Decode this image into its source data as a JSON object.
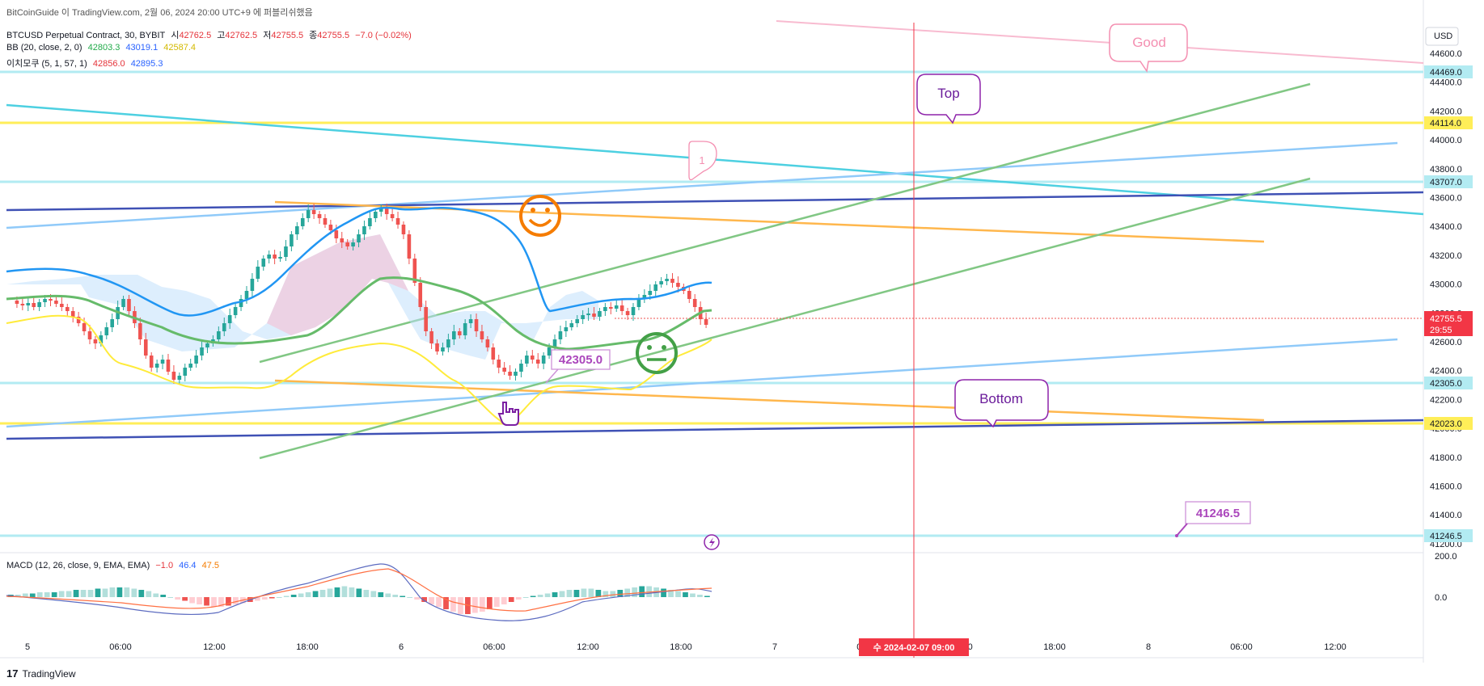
{
  "attribution": "BitCoinGuide 이 TradingView.com, 2월 06, 2024 20:00 UTC+9 에 퍼블리쉬했음",
  "symbol": {
    "name": "BTCUSD Perpetual Contract, 30, BYBIT",
    "open_label": "시",
    "open": "42762.5",
    "high_label": "고",
    "high": "42762.5",
    "low_label": "저",
    "low": "42755.5",
    "close_label": "종",
    "close": "42755.5",
    "change": "−7.0 (−0.02%)"
  },
  "bb": {
    "label": "BB (20, close, 2, 0)",
    "basis": "42803.3",
    "upper": "43019.1",
    "lower": "42587.4"
  },
  "ichimoku": {
    "label": "이치모쿠 (5, 1, 57, 1)",
    "v1": "42856.0",
    "v2": "42895.3"
  },
  "macd": {
    "label": "MACD (12, 26, close, 9, EMA, EMA)",
    "hist": "−1.0",
    "macd": "46.4",
    "signal": "47.5"
  },
  "currency": "USD",
  "price_axis": {
    "ticks": [
      "44600.0",
      "44400.0",
      "44200.0",
      "44000.0",
      "43800.0",
      "43600.0",
      "43400.0",
      "43200.0",
      "43000.0",
      "42800.0",
      "42600.0",
      "42400.0",
      "42200.0",
      "42000.0",
      "41800.0",
      "41600.0",
      "41400.0",
      "41200.0"
    ],
    "macd_ticks": [
      "200.0",
      "0.0"
    ],
    "labels": {
      "l44469": "44469.0",
      "l44114": "44114.0",
      "l43707": "43707.0",
      "last_price": "42755.5",
      "countdown": "29:55",
      "l42305": "42305.0",
      "l42023": "42023.0",
      "l41246": "41246.5"
    }
  },
  "time_axis": {
    "ticks": [
      "5",
      "06:00",
      "12:00",
      "18:00",
      "6",
      "06:00",
      "12:00",
      "18:00",
      "7",
      "06:00",
      "12:00",
      "18:00",
      "8",
      "06:00",
      "12:00"
    ],
    "crosshair_label": "수 2024-02-07   09:00"
  },
  "annotations": {
    "good": "Good",
    "top": "Top",
    "bottom": "Bottom",
    "one": "1",
    "price_42305": "42305.0",
    "price_41246": "41246.5"
  },
  "footer": {
    "brand": "TradingView",
    "logo": "17"
  },
  "colors": {
    "up": "#26a69a",
    "down": "#ef5350",
    "bb_basis": "#4caf50",
    "bb_band": "#2196f3",
    "lower": "#ffeb3b",
    "crosshair": "#f23645"
  }
}
